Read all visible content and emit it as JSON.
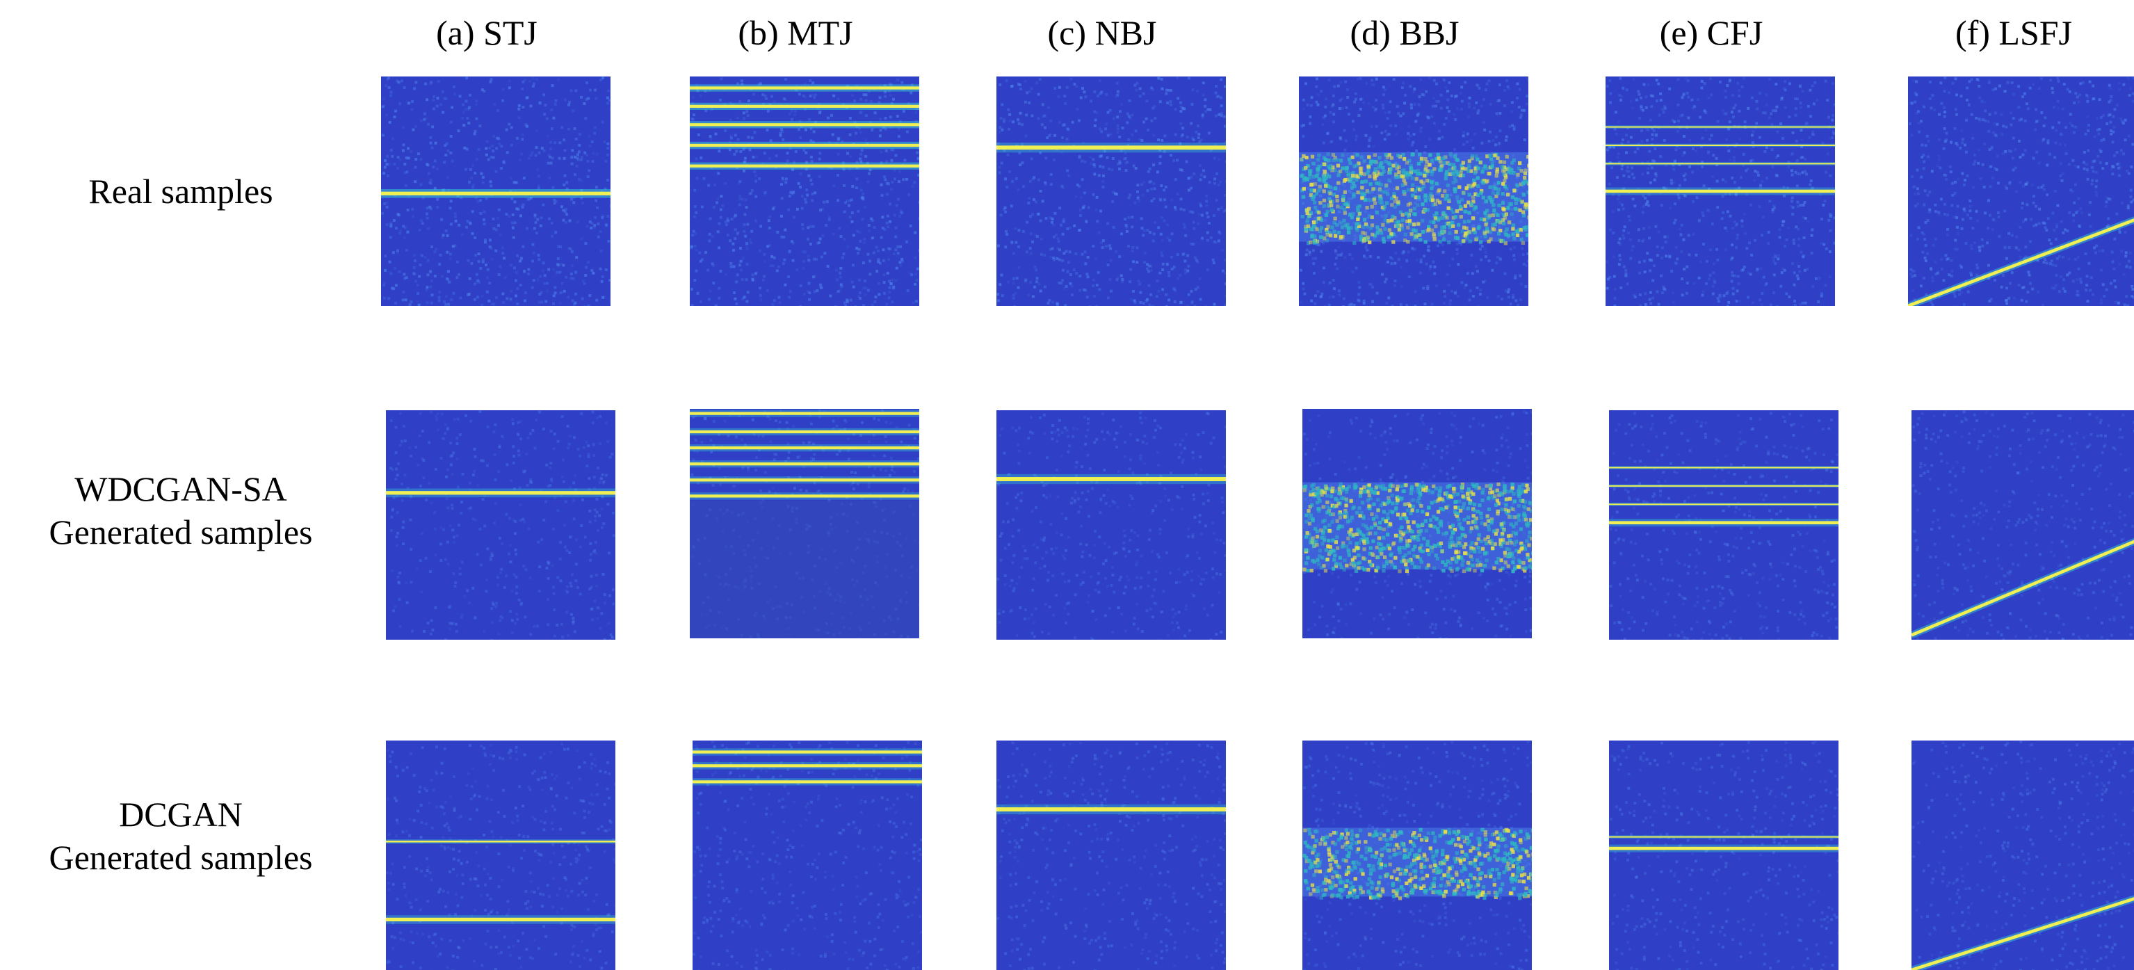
{
  "figure": {
    "columns": [
      {
        "id": "stj",
        "label": "(a) STJ"
      },
      {
        "id": "mtj",
        "label": "(b) MTJ"
      },
      {
        "id": "nbj",
        "label": "(c) NBJ"
      },
      {
        "id": "bbj",
        "label": "(d) BBJ"
      },
      {
        "id": "cfj",
        "label": "(e) CFJ"
      },
      {
        "id": "lsfj",
        "label": "(f) LSFJ"
      }
    ],
    "rows": [
      {
        "id": "real",
        "label_lines": [
          "Real samples"
        ]
      },
      {
        "id": "wdcgan",
        "label_lines": [
          "WDCGAN-SA",
          "Generated samples"
        ]
      },
      {
        "id": "dcgan",
        "label_lines": [
          "DCGAN",
          "Generated samples"
        ]
      }
    ]
  },
  "colors": {
    "background": "#2f3fc6",
    "noise": "#4a7be8",
    "line": "#f0f055",
    "line_glow": "#37d0d6",
    "band_mid": "#2fb8c2",
    "band_hot": "#e8e04a"
  }
}
